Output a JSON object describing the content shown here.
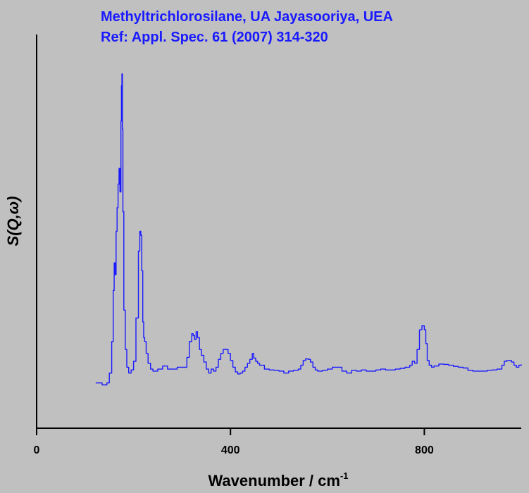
{
  "chart_data": {
    "type": "line",
    "title": "Methyltrichlorosilane, UA Jayasooriya, UEA",
    "subtitle": "Ref: Appl. Spec. 61 (2007) 314-320",
    "xlabel": "Wavenumber / cm",
    "xlabel_sup": "-1",
    "ylabel": "S(Q,ω)",
    "xlim": [
      0,
      1000
    ],
    "ylim": [
      0,
      1
    ],
    "x_ticks": [
      0,
      400,
      800
    ],
    "x_tick_labels": [
      "0",
      "400",
      "800"
    ],
    "y_ticks_shown": false,
    "grid": false,
    "legend": "none",
    "series": [
      {
        "color": "#1a1aff",
        "x": [
          122,
          135,
          145,
          150,
          155,
          158,
          160,
          162,
          164,
          166,
          168,
          170,
          172,
          174,
          175,
          176,
          177,
          178,
          180,
          183,
          186,
          190,
          195,
          200,
          205,
          210,
          213,
          215,
          217,
          219,
          221,
          223,
          226,
          230,
          235,
          240,
          250,
          260,
          270,
          280,
          290,
          300,
          305,
          310,
          315,
          320,
          323,
          326,
          329,
          332,
          336,
          340,
          345,
          350,
          355,
          360,
          365,
          370,
          375,
          380,
          385,
          390,
          395,
          400,
          405,
          410,
          415,
          420,
          425,
          430,
          435,
          440,
          445,
          448,
          452,
          456,
          460,
          470,
          480,
          490,
          500,
          510,
          520,
          530,
          540,
          545,
          550,
          555,
          560,
          565,
          570,
          575,
          580,
          590,
          600,
          610,
          620,
          630,
          640,
          650,
          660,
          670,
          680,
          690,
          700,
          710,
          720,
          730,
          740,
          750,
          760,
          770,
          775,
          780,
          785,
          790,
          795,
          800,
          803,
          806,
          810,
          815,
          820,
          830,
          840,
          850,
          860,
          870,
          880,
          890,
          900,
          910,
          920,
          930,
          940,
          950,
          960,
          965,
          970,
          975,
          980,
          985,
          990,
          995,
          1000
        ],
        "y": [
          0.115,
          0.11,
          0.115,
          0.14,
          0.22,
          0.35,
          0.42,
          0.39,
          0.5,
          0.56,
          0.62,
          0.66,
          0.6,
          0.78,
          0.87,
          0.9,
          0.76,
          0.55,
          0.3,
          0.2,
          0.155,
          0.14,
          0.148,
          0.17,
          0.28,
          0.45,
          0.5,
          0.49,
          0.4,
          0.27,
          0.23,
          0.22,
          0.19,
          0.165,
          0.15,
          0.145,
          0.15,
          0.158,
          0.15,
          0.15,
          0.155,
          0.155,
          0.155,
          0.18,
          0.22,
          0.24,
          0.235,
          0.225,
          0.245,
          0.23,
          0.2,
          0.185,
          0.168,
          0.15,
          0.14,
          0.15,
          0.145,
          0.155,
          0.175,
          0.19,
          0.2,
          0.2,
          0.19,
          0.172,
          0.155,
          0.143,
          0.138,
          0.14,
          0.145,
          0.155,
          0.165,
          0.175,
          0.19,
          0.178,
          0.17,
          0.165,
          0.16,
          0.15,
          0.148,
          0.147,
          0.145,
          0.14,
          0.145,
          0.147,
          0.15,
          0.16,
          0.172,
          0.176,
          0.175,
          0.168,
          0.155,
          0.148,
          0.145,
          0.147,
          0.15,
          0.155,
          0.155,
          0.145,
          0.14,
          0.147,
          0.145,
          0.148,
          0.145,
          0.145,
          0.148,
          0.15,
          0.148,
          0.148,
          0.15,
          0.152,
          0.155,
          0.16,
          0.17,
          0.165,
          0.2,
          0.25,
          0.26,
          0.25,
          0.215,
          0.172,
          0.16,
          0.155,
          0.158,
          0.163,
          0.162,
          0.16,
          0.157,
          0.155,
          0.153,
          0.147,
          0.145,
          0.145,
          0.145,
          0.147,
          0.148,
          0.15,
          0.16,
          0.17,
          0.172,
          0.172,
          0.168,
          0.16,
          0.155,
          0.16,
          0.162
        ]
      }
    ]
  }
}
